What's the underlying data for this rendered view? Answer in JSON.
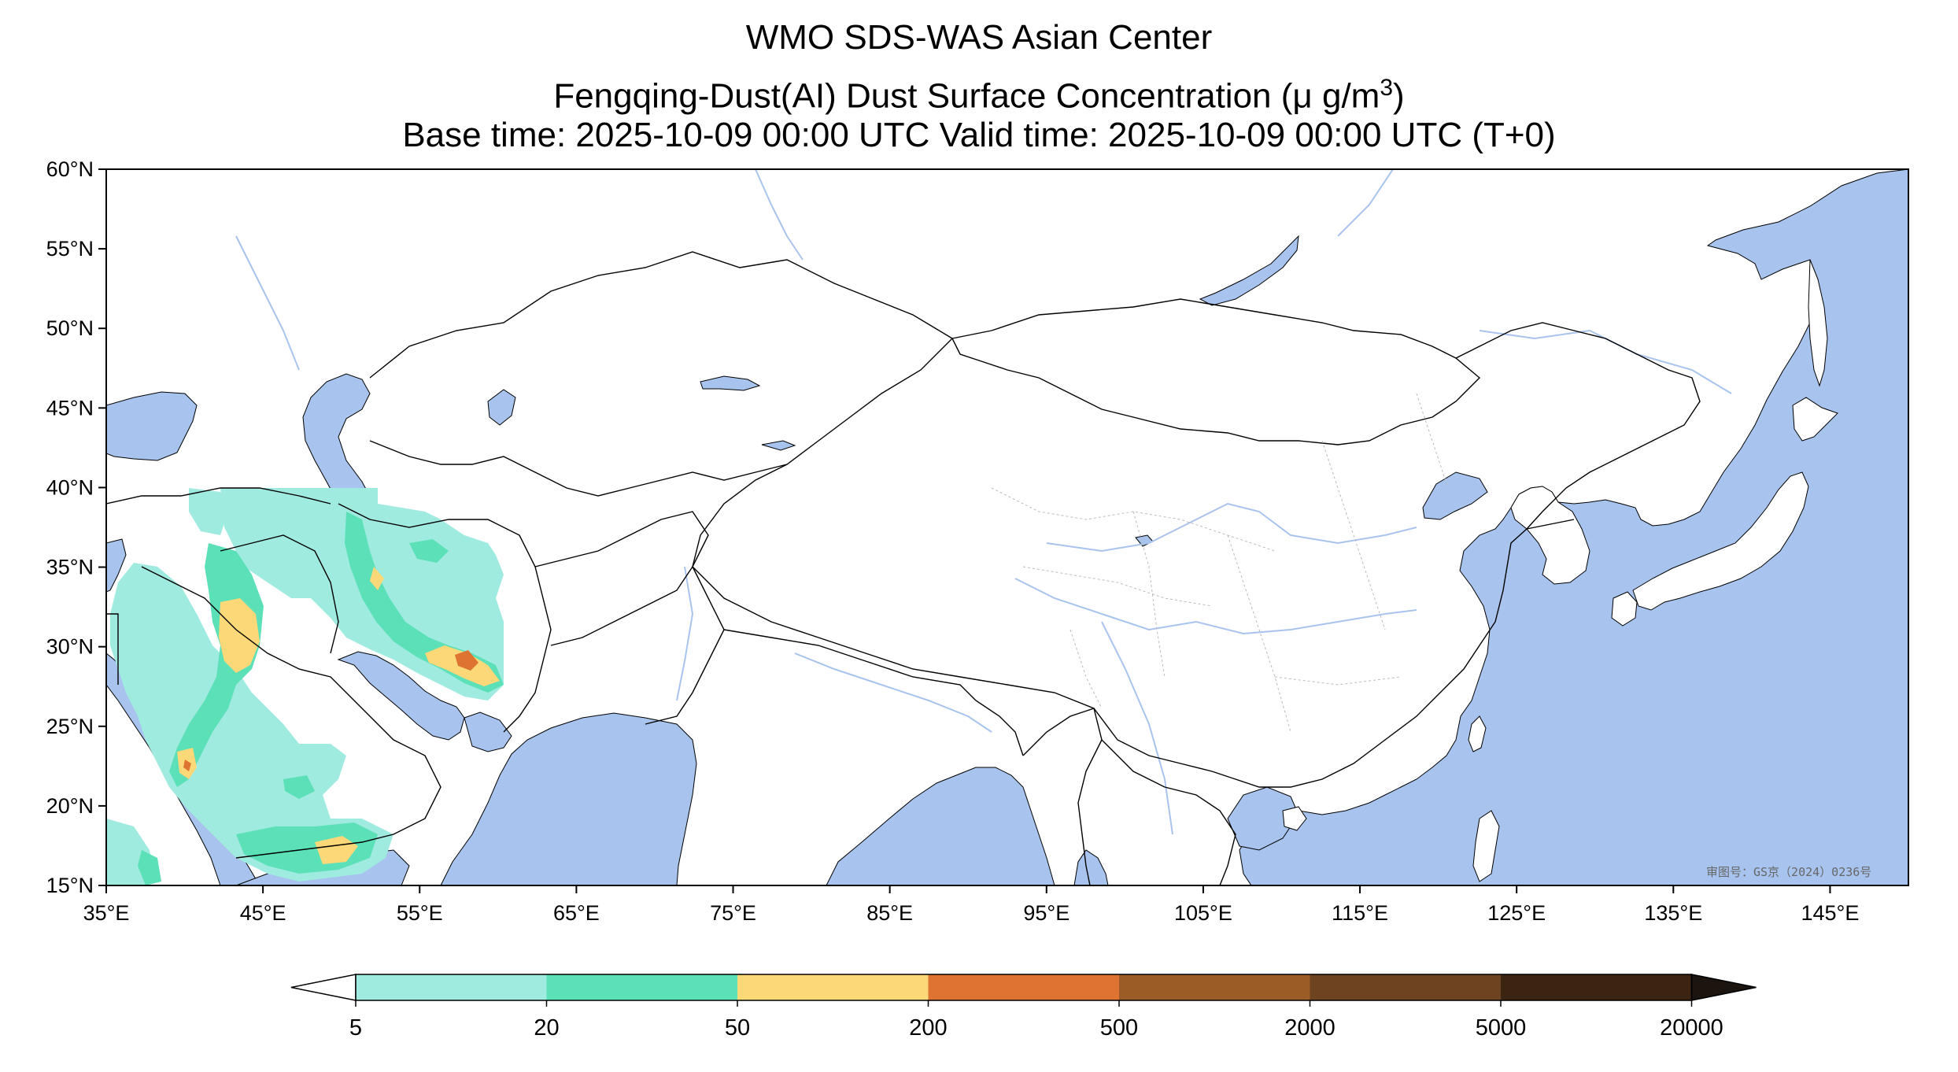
{
  "title": {
    "line1": "WMO SDS-WAS Asian Center",
    "line2_prefix": "Fengqing-Dust(AI) Dust Surface Concentration (",
    "line2_unit": "μ g/m",
    "line2_sup": "3",
    "line2_suffix": ")",
    "line3": "Base time: 2025-10-09 00:00 UTC Valid time: 2025-10-09 00:00 UTC (T+0)"
  },
  "map": {
    "lon_range": [
      35,
      150
    ],
    "lat_range": [
      15,
      60
    ],
    "lat_ticks": [
      "60°N",
      "55°N",
      "50°N",
      "45°N",
      "40°N",
      "35°N",
      "30°N",
      "25°N",
      "20°N",
      "15°N"
    ],
    "lon_ticks": [
      "35°E",
      "45°E",
      "55°E",
      "65°E",
      "75°E",
      "85°E",
      "95°E",
      "105°E",
      "115°E",
      "125°E",
      "135°E",
      "145°E"
    ],
    "review_stamp": "审图号：GS京（2024）0236号",
    "colors": {
      "ocean": "#a8c4ee",
      "land": "#ffffff",
      "border": "#000000",
      "river": "#a8c4ee"
    }
  },
  "colorbar": {
    "levels": [
      "5",
      "20",
      "50",
      "200",
      "500",
      "2000",
      "5000",
      "20000"
    ],
    "colors": [
      "#a0ebe0",
      "#5ce0b8",
      "#fcd878",
      "#de7432",
      "#9c5c26",
      "#6e4420",
      "#3c2412"
    ],
    "under_color": "#ffffff",
    "over_color": "#1c140e"
  }
}
